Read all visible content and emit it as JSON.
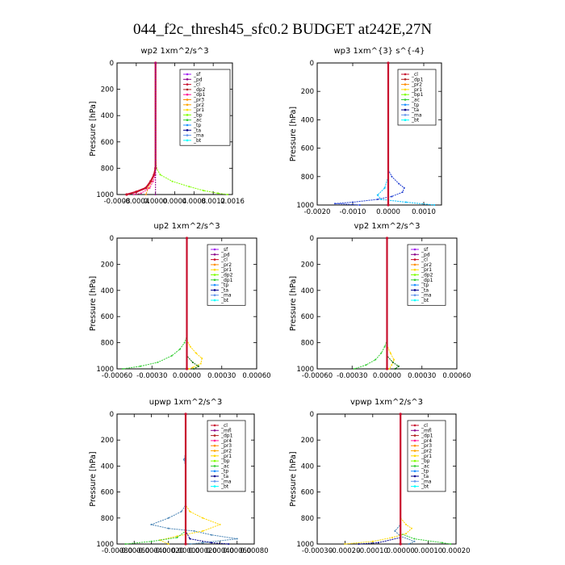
{
  "figure": {
    "title": "044_f2c_thresh45_sfc0.2  BUDGET at242E,27N"
  },
  "chart_data": [
    {
      "type": "line",
      "title": "wp2   1xm^2/s^3",
      "ylabel": "Pressure [hPa]",
      "xlim": [
        -0.0008,
        0.0016
      ],
      "ylim": [
        1000,
        0
      ],
      "xticks": [
        -0.0008,
        -0.0004,
        0.0,
        0.0004,
        0.0008,
        0.0012,
        0.0016
      ],
      "xtick_labels": [
        "-0.0008",
        "-0.0004",
        "0.0000",
        "0.0004",
        "0.0008",
        "0.0012",
        "0.0016"
      ],
      "yticks": [
        0,
        200,
        400,
        600,
        800,
        1000
      ],
      "ytick_labels": [
        "0",
        "200",
        "400",
        "600",
        "800",
        "1000"
      ],
      "legend": [
        "_sf",
        "_pd",
        "_cl",
        "_dp2",
        "_dp1",
        "_pr3",
        "_pr2",
        "_pr1",
        "_bp",
        "_ac",
        "_tp",
        "_ta",
        "_ma",
        "_bt"
      ],
      "legend_colors": [
        "#a020f0",
        "#8b008b",
        "#c8102e",
        "#b22222",
        "#ff1493",
        "#ff8c00",
        "#ffa500",
        "#ffd700",
        "#7fff00",
        "#32cd32",
        "#1e90ff",
        "#00008b",
        "#6495ed",
        "#00ffff"
      ],
      "series": [
        {
          "color": "#7fff00",
          "y": [
            0,
            700,
            800,
            850,
            900,
            940,
            970,
            990,
            1000
          ],
          "x": [
            0,
            0,
            2e-05,
            0.0001,
            0.00035,
            0.0007,
            0.001,
            0.0013,
            0.0015
          ]
        },
        {
          "color": "#ff8c00",
          "y": [
            0,
            800,
            850,
            900,
            950,
            1000
          ],
          "x": [
            0,
            0,
            -3e-05,
            -8e-05,
            -0.00015,
            -0.0002
          ]
        },
        {
          "color": "#c8102e",
          "y": [
            0,
            800,
            850,
            900,
            950,
            980,
            1000
          ],
          "x": [
            0,
            0,
            -3e-05,
            -0.0001,
            -0.0002,
            -0.0004,
            -0.0006
          ]
        },
        {
          "color": "#ff1493",
          "y": [
            0,
            850,
            900,
            950,
            990,
            1000
          ],
          "x": [
            0,
            0,
            -5e-05,
            -0.00012,
            -0.0003,
            -0.00045
          ]
        },
        {
          "color": "#8b008b",
          "y": [
            0,
            1000
          ],
          "x": [
            0,
            0
          ]
        }
      ]
    },
    {
      "type": "line",
      "title": "wp3   1xm^{3} s^{-4}",
      "ylabel": "Pressure [hPa]",
      "xlim": [
        -0.002,
        0.0015
      ],
      "ylim": [
        1000,
        0
      ],
      "xticks": [
        -0.002,
        -0.001,
        0.0,
        0.001
      ],
      "xtick_labels": [
        "-0.0020",
        "-0.0010",
        "0.0000",
        "0.0010"
      ],
      "yticks": [
        0,
        200,
        400,
        600,
        800,
        1000
      ],
      "ytick_labels": [
        "0",
        "200",
        "400",
        "600",
        "800",
        "1000"
      ],
      "legend": [
        "_cl",
        "_dp1",
        "_pr2",
        "_pr1",
        "_bp1",
        "_ac",
        "_tp",
        "_ta",
        "_ma",
        "_bt"
      ],
      "legend_colors": [
        "#c8102e",
        "#b22222",
        "#ff8c00",
        "#ffd700",
        "#7fff00",
        "#32cd32",
        "#1e90ff",
        "#00008b",
        "#6495ed",
        "#00ffff"
      ],
      "series": [
        {
          "color": "#1e3cd0",
          "y": [
            0,
            750,
            800,
            850,
            880,
            910,
            940,
            960,
            980,
            990,
            1000
          ],
          "x": [
            0,
            0,
            0.0001,
            0.0003,
            0.00045,
            0.0004,
            0.0001,
            -0.0003,
            -0.001,
            -0.0015,
            -0.0008
          ]
        },
        {
          "color": "#00bfff",
          "y": [
            0,
            800,
            880,
            930,
            960,
            980,
            1000
          ],
          "x": [
            0,
            0,
            -0.0001,
            -0.0003,
            -0.0002,
            0.0005,
            0.0013
          ]
        },
        {
          "color": "#c8102e",
          "y": [
            0,
            1000
          ],
          "x": [
            0,
            0
          ]
        }
      ]
    },
    {
      "type": "line",
      "title": "up2   1xm^2/s^3",
      "ylabel": "Pressure [hPa]",
      "xlim": [
        -0.0006,
        0.0006
      ],
      "ylim": [
        1000,
        0
      ],
      "xticks": [
        -0.0006,
        -0.0003,
        0.0,
        0.0003,
        0.0006
      ],
      "xtick_labels": [
        "-0.00060",
        "-0.00030",
        "0.00000",
        "0.00030",
        "0.00060"
      ],
      "yticks": [
        0,
        200,
        400,
        600,
        800,
        1000
      ],
      "ytick_labels": [
        "0",
        "200",
        "400",
        "600",
        "800",
        "1000"
      ],
      "legend": [
        "_sf",
        "_pd",
        "_cl",
        "_pr2",
        "_pr1",
        "_dp2",
        "_dp1",
        "_tp",
        "_ta",
        "_ma",
        "_bt"
      ],
      "legend_colors": [
        "#a020f0",
        "#8b008b",
        "#c8102e",
        "#ff8c00",
        "#ffd700",
        "#7fff00",
        "#32cd32",
        "#1e90ff",
        "#00008b",
        "#6495ed",
        "#00ffff"
      ],
      "series": [
        {
          "color": "#32cd32",
          "y": [
            0,
            750,
            800,
            850,
            900,
            950,
            980,
            1000
          ],
          "x": [
            0,
            0,
            -2e-05,
            -6e-05,
            -0.00013,
            -0.00025,
            -0.0004,
            -0.00055
          ]
        },
        {
          "color": "#ffd700",
          "y": [
            0,
            780,
            830,
            880,
            920,
            960,
            990,
            1000
          ],
          "x": [
            0,
            0,
            3e-05,
            8e-05,
            0.00013,
            0.00012,
            5e-05,
            2e-05
          ]
        },
        {
          "color": "#006400",
          "y": [
            0,
            900,
            950,
            980,
            1000
          ],
          "x": [
            0,
            0,
            5e-05,
            0.0001,
            6e-05
          ]
        },
        {
          "color": "#c8102e",
          "y": [
            0,
            1000
          ],
          "x": [
            0,
            0
          ]
        }
      ]
    },
    {
      "type": "line",
      "title": "vp2   1xm^2/s^3",
      "ylabel": "Pressure [hPa]",
      "xlim": [
        -0.0006,
        0.0006
      ],
      "ylim": [
        1000,
        0
      ],
      "xticks": [
        -0.0006,
        -0.0003,
        0.0,
        0.0003,
        0.0006
      ],
      "xtick_labels": [
        "-0.00060",
        "-0.00030",
        "0.00000",
        "0.00030",
        "0.00060"
      ],
      "yticks": [
        0,
        200,
        400,
        600,
        800,
        1000
      ],
      "ytick_labels": [
        "0",
        "200",
        "400",
        "600",
        "800",
        "1000"
      ],
      "legend": [
        "_sf",
        "_pd",
        "_cl",
        "_pr2",
        "_pr1",
        "_dp2",
        "_dp1",
        "_tp",
        "_ta",
        "_ma",
        "_bt"
      ],
      "legend_colors": [
        "#a020f0",
        "#8b008b",
        "#c8102e",
        "#ff8c00",
        "#ffd700",
        "#7fff00",
        "#32cd32",
        "#1e90ff",
        "#00008b",
        "#6495ed",
        "#00ffff"
      ],
      "series": [
        {
          "color": "#32cd32",
          "y": [
            0,
            780,
            830,
            880,
            930,
            970,
            1000
          ],
          "x": [
            0,
            0,
            -2e-05,
            -5e-05,
            -0.0001,
            -0.00018,
            -0.00028
          ]
        },
        {
          "color": "#ffd700",
          "y": [
            0,
            820,
            880,
            930,
            970,
            1000
          ],
          "x": [
            0,
            0,
            3e-05,
            6e-05,
            4e-05,
            2e-05
          ]
        },
        {
          "color": "#006400",
          "y": [
            0,
            900,
            950,
            980,
            1000
          ],
          "x": [
            0,
            0,
            5e-05,
            0.0001,
            7e-05
          ]
        },
        {
          "color": "#c8102e",
          "y": [
            0,
            1000
          ],
          "x": [
            0,
            0
          ]
        }
      ]
    },
    {
      "type": "line",
      "title": "upwp   1xm^2/s^3",
      "ylabel": "Pressure [hPa]",
      "xlim": [
        -0.0008,
        0.0008
      ],
      "ylim": [
        1000,
        0
      ],
      "xticks": [
        -0.0008,
        -0.0006,
        -0.0004,
        -0.0002,
        0.0,
        0.0002,
        0.0004,
        0.0006,
        0.0008
      ],
      "xtick_labels": [
        "-0.00080",
        "-0.00060",
        "-0.00040",
        "-0.00020",
        "0.00000",
        "0.00020",
        "0.00040",
        "0.00060",
        "0.00080"
      ],
      "yticks": [
        0,
        200,
        400,
        600,
        800,
        1000
      ],
      "ytick_labels": [
        "0",
        "200",
        "400",
        "600",
        "800",
        "1000"
      ],
      "legend": [
        "_cl",
        "_mfl",
        "_dp1",
        "_pr4",
        "_pr3",
        "_pr2",
        "_pr1",
        "_bp",
        "_ac",
        "_tp",
        "_ta",
        "_ma",
        "_bt"
      ],
      "legend_colors": [
        "#c8102e",
        "#8b008b",
        "#b22222",
        "#ff1493",
        "#ff8c00",
        "#ffa500",
        "#ffd700",
        "#7fff00",
        "#32cd32",
        "#1e90ff",
        "#00008b",
        "#6495ed",
        "#00ffff"
      ],
      "series": [
        {
          "color": "#4682b4",
          "y": [
            0,
            300,
            350,
            400,
            700,
            750,
            800,
            850,
            880,
            900,
            930,
            960,
            990,
            1000
          ],
          "x": [
            0,
            0,
            -2e-05,
            0,
            0,
            -5e-05,
            -0.0002,
            -0.0004,
            -0.0002,
            0.0001,
            0.0003,
            0.0006,
            0.0002,
            5e-05
          ]
        },
        {
          "color": "#ffd700",
          "y": [
            0,
            700,
            750,
            800,
            850,
            900,
            940,
            970,
            1000
          ],
          "x": [
            0,
            0,
            5e-05,
            0.0002,
            0.0004,
            0.0002,
            -0.0001,
            -0.0003,
            -0.0002
          ]
        },
        {
          "color": "#32cd32",
          "y": [
            0,
            900,
            950,
            980,
            1000
          ],
          "x": [
            0,
            0,
            -0.0001,
            -0.0004,
            -0.0007
          ]
        },
        {
          "color": "#00008b",
          "y": [
            0,
            900,
            960,
            990,
            1000
          ],
          "x": [
            0,
            0,
            5e-05,
            0.0003,
            0.0005
          ]
        },
        {
          "color": "#c8102e",
          "y": [
            0,
            1000
          ],
          "x": [
            0,
            0
          ]
        }
      ]
    },
    {
      "type": "line",
      "title": "vpwp   1xm^2/s^3",
      "ylabel": "Pressure [hPa]",
      "xlim": [
        -0.0003,
        0.0002
      ],
      "ylim": [
        1000,
        0
      ],
      "xticks": [
        -0.0003,
        -0.0002,
        -0.0001,
        0.0,
        0.0001,
        0.0002
      ],
      "xtick_labels": [
        "-0.00030",
        "-0.00020",
        "-0.00010",
        "0.00000",
        "0.00010",
        "0.00020"
      ],
      "yticks": [
        0,
        200,
        400,
        600,
        800,
        1000
      ],
      "ytick_labels": [
        "0",
        "200",
        "400",
        "600",
        "800",
        "1000"
      ],
      "legend": [
        "_cl",
        "_mfl",
        "_dp1",
        "_pr4",
        "_pr3",
        "_pr2",
        "_pr1",
        "_bp",
        "_ac",
        "_tp",
        "_ta",
        "_ma",
        "_bt"
      ],
      "legend_colors": [
        "#c8102e",
        "#8b008b",
        "#b22222",
        "#ff1493",
        "#ff8c00",
        "#ffa500",
        "#ffd700",
        "#7fff00",
        "#32cd32",
        "#1e90ff",
        "#00008b",
        "#6495ed",
        "#00ffff"
      ],
      "series": [
        {
          "color": "#ffd700",
          "y": [
            0,
            800,
            850,
            880,
            920,
            950,
            980,
            1000
          ],
          "x": [
            0,
            0,
            2e-05,
            4e-05,
            2e-05,
            -3e-05,
            -0.0001,
            -0.0002
          ]
        },
        {
          "color": "#4682b4",
          "y": [
            0,
            850,
            900,
            940,
            980,
            1000
          ],
          "x": [
            0,
            0,
            -2e-05,
            0,
            5e-05,
            3e-05
          ]
        },
        {
          "color": "#32cd32",
          "y": [
            0,
            920,
            960,
            990,
            1000
          ],
          "x": [
            0,
            0,
            5e-05,
            0.00015,
            0.00018
          ]
        },
        {
          "color": "#00008b",
          "y": [
            0,
            950,
            990,
            1000
          ],
          "x": [
            0,
            0,
            -8e-05,
            -0.00015
          ]
        },
        {
          "color": "#c8102e",
          "y": [
            0,
            1000
          ],
          "x": [
            0,
            0
          ]
        }
      ]
    }
  ]
}
